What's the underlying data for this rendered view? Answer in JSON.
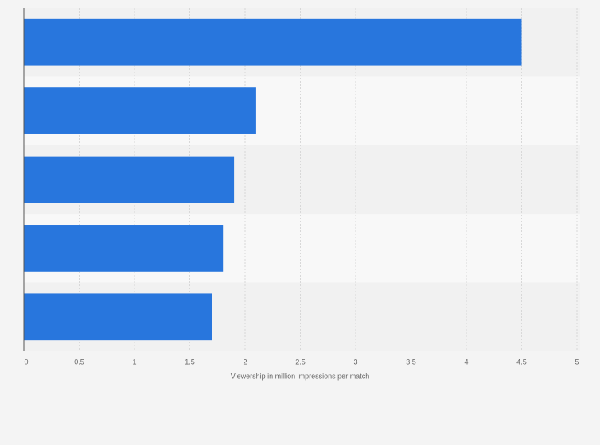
{
  "chart_data": {
    "type": "bar",
    "orientation": "horizontal",
    "x_label": "Viewership in million impressions per match",
    "categories": [
      null,
      null,
      null,
      null,
      null
    ],
    "values": [
      4.5,
      2.1,
      1.9,
      1.8,
      1.7
    ],
    "color": "#2876dd",
    "xlim": [
      0,
      5
    ],
    "xticks": [
      0,
      0.5,
      1,
      1.5,
      2,
      2.5,
      3,
      3.5,
      4,
      4.5,
      5
    ],
    "grid": true
  }
}
